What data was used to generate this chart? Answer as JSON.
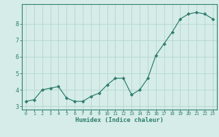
{
  "x": [
    0,
    1,
    2,
    3,
    4,
    5,
    6,
    7,
    8,
    9,
    10,
    11,
    12,
    13,
    14,
    15,
    16,
    17,
    18,
    19,
    20,
    21,
    22,
    23
  ],
  "y": [
    3.3,
    3.4,
    4.0,
    4.1,
    4.2,
    3.5,
    3.3,
    3.3,
    3.6,
    3.8,
    4.3,
    4.7,
    4.7,
    3.7,
    4.0,
    4.7,
    6.1,
    6.8,
    7.5,
    8.3,
    8.6,
    8.7,
    8.6,
    8.3
  ],
  "xlabel": "Humidex (Indice chaleur)",
  "ylim": [
    2.8,
    9.2
  ],
  "xlim": [
    -0.5,
    23.5
  ],
  "yticks": [
    3,
    4,
    5,
    6,
    7,
    8
  ],
  "xticks": [
    0,
    1,
    2,
    3,
    4,
    5,
    6,
    7,
    8,
    9,
    10,
    11,
    12,
    13,
    14,
    15,
    16,
    17,
    18,
    19,
    20,
    21,
    22,
    23
  ],
  "line_color": "#2e7d6e",
  "marker_color": "#2e7d6e",
  "bg_color": "#d5ece8",
  "grid_color": "#b8d8d2",
  "bottom_strip_color": "#2e6e62"
}
